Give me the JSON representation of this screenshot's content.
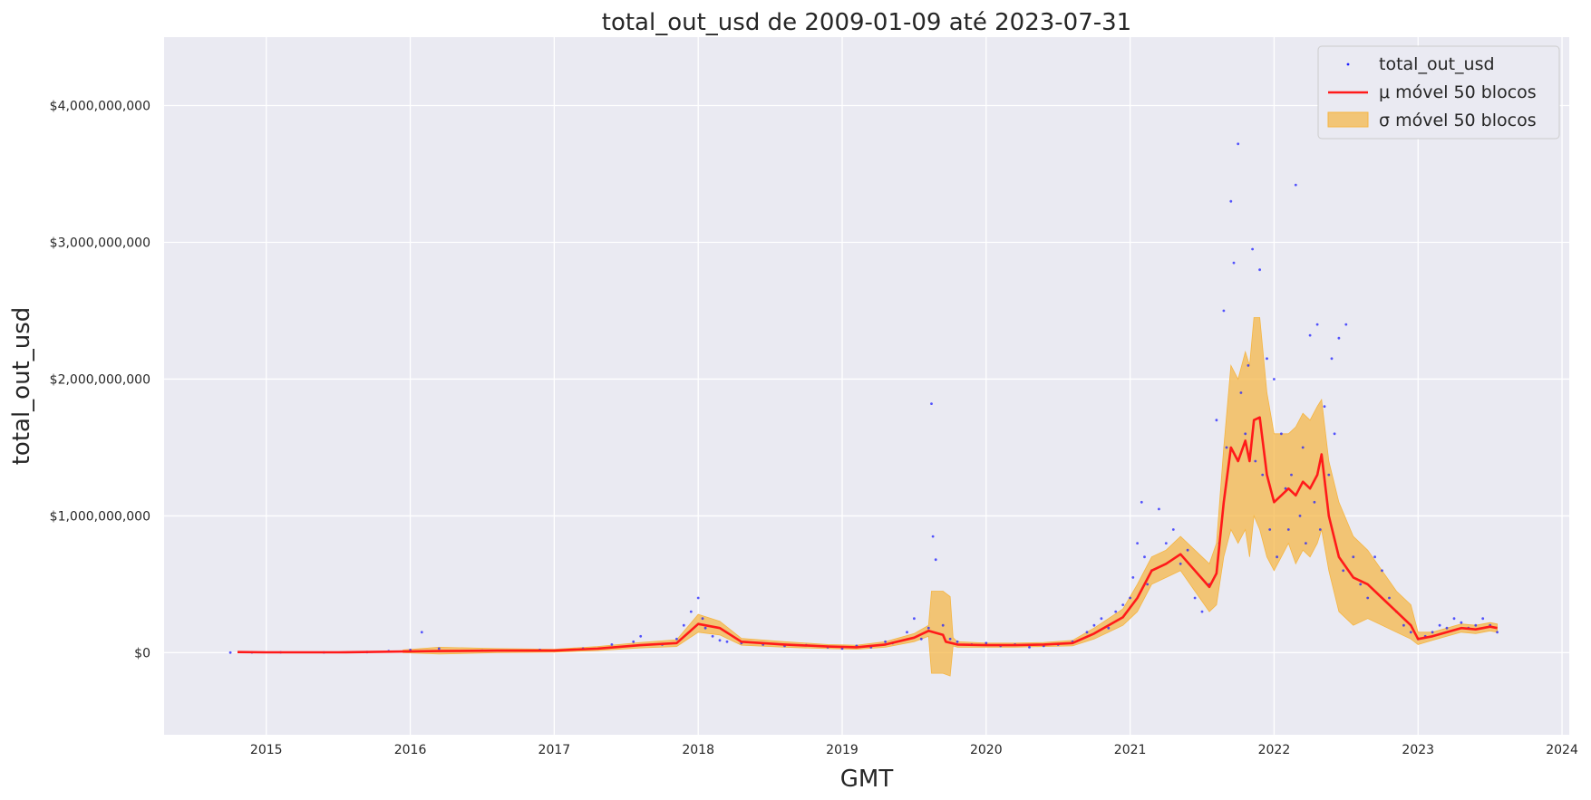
{
  "chart_data": {
    "type": "scatter",
    "title": "total_out_usd de 2009-01-09 até 2023-07-31",
    "xlabel": "GMT",
    "ylabel": "total_out_usd",
    "x_ticks": [
      "2015",
      "2016",
      "2017",
      "2018",
      "2019",
      "2020",
      "2021",
      "2022",
      "2023",
      "2024"
    ],
    "y_ticks": [
      "$0",
      "$1,000,000,000",
      "$2,000,000,000",
      "$3,000,000,000",
      "$4,000,000,000"
    ],
    "xlim": [
      2014.29,
      2024.05
    ],
    "ylim": [
      -600000000,
      4500000000
    ],
    "grid": true,
    "legend_position": "top-right",
    "colors": {
      "background": "#eaeaf2",
      "scatter": "#1f1fff",
      "mean": "#ff1a1a",
      "band": "#f5b542"
    },
    "series": [
      {
        "name": "total_out_usd",
        "kind": "scatter",
        "x": [
          2014.75,
          2014.9,
          2015.1,
          2015.4,
          2015.7,
          2015.85,
          2016.0,
          2016.08,
          2016.2,
          2016.5,
          2016.9,
          2017.2,
          2017.4,
          2017.55,
          2017.6,
          2017.75,
          2017.85,
          2017.9,
          2017.95,
          2018.0,
          2018.03,
          2018.05,
          2018.1,
          2018.15,
          2018.2,
          2018.3,
          2018.45,
          2018.6,
          2018.75,
          2018.9,
          2019.0,
          2019.1,
          2019.2,
          2019.3,
          2019.35,
          2019.45,
          2019.5,
          2019.55,
          2019.6,
          2019.62,
          2019.63,
          2019.65,
          2019.7,
          2019.75,
          2019.8,
          2019.9,
          2020.0,
          2020.1,
          2020.2,
          2020.3,
          2020.4,
          2020.5,
          2020.6,
          2020.7,
          2020.75,
          2020.8,
          2020.85,
          2020.9,
          2020.95,
          2021.0,
          2021.02,
          2021.05,
          2021.08,
          2021.1,
          2021.12,
          2021.15,
          2021.2,
          2021.25,
          2021.3,
          2021.35,
          2021.4,
          2021.45,
          2021.5,
          2021.55,
          2021.6,
          2021.62,
          2021.65,
          2021.67,
          2021.7,
          2021.72,
          2021.75,
          2021.77,
          2021.8,
          2021.82,
          2021.85,
          2021.87,
          2021.9,
          2021.92,
          2021.95,
          2021.97,
          2022.0,
          2022.02,
          2022.05,
          2022.08,
          2022.1,
          2022.12,
          2022.15,
          2022.18,
          2022.2,
          2022.22,
          2022.25,
          2022.28,
          2022.3,
          2022.32,
          2022.35,
          2022.38,
          2022.4,
          2022.42,
          2022.45,
          2022.48,
          2022.5,
          2022.55,
          2022.6,
          2022.65,
          2022.7,
          2022.75,
          2022.8,
          2022.85,
          2022.9,
          2022.95,
          2023.0,
          2023.05,
          2023.1,
          2023.15,
          2023.2,
          2023.25,
          2023.3,
          2023.35,
          2023.4,
          2023.45,
          2023.5,
          2023.55
        ],
        "y": [
          1000000,
          2000000,
          3000000,
          2000000,
          5000000,
          12000000,
          20000000,
          150000000,
          30000000,
          15000000,
          20000000,
          30000000,
          60000000,
          80000000,
          120000000,
          60000000,
          100000000,
          200000000,
          300000000,
          400000000,
          250000000,
          180000000,
          120000000,
          90000000,
          80000000,
          70000000,
          60000000,
          50000000,
          55000000,
          40000000,
          30000000,
          50000000,
          40000000,
          80000000,
          70000000,
          150000000,
          250000000,
          100000000,
          180000000,
          1820000000,
          850000000,
          680000000,
          200000000,
          100000000,
          80000000,
          60000000,
          70000000,
          50000000,
          60000000,
          40000000,
          50000000,
          60000000,
          80000000,
          150000000,
          200000000,
          250000000,
          180000000,
          300000000,
          350000000,
          400000000,
          550000000,
          800000000,
          1100000000,
          700000000,
          500000000,
          600000000,
          1050000000,
          800000000,
          900000000,
          650000000,
          750000000,
          400000000,
          300000000,
          500000000,
          1700000000,
          800000000,
          2500000000,
          1500000000,
          3300000000,
          2850000000,
          3720000000,
          1900000000,
          1600000000,
          2100000000,
          2950000000,
          1400000000,
          2800000000,
          1300000000,
          2150000000,
          900000000,
          2000000000,
          700000000,
          1600000000,
          1200000000,
          900000000,
          1300000000,
          3420000000,
          1000000000,
          1500000000,
          800000000,
          2320000000,
          1100000000,
          2400000000,
          900000000,
          1800000000,
          1300000000,
          2150000000,
          1600000000,
          2300000000,
          600000000,
          2400000000,
          700000000,
          500000000,
          400000000,
          700000000,
          600000000,
          400000000,
          300000000,
          200000000,
          150000000,
          100000000,
          120000000,
          150000000,
          200000000,
          180000000,
          250000000,
          220000000,
          180000000,
          200000000,
          250000000,
          200000000,
          150000000
        ]
      },
      {
        "name": "μ móvel 50 blocos",
        "kind": "line",
        "x": [
          2014.8,
          2015.0,
          2015.5,
          2015.9,
          2016.2,
          2016.6,
          2017.0,
          2017.3,
          2017.6,
          2017.85,
          2018.0,
          2018.15,
          2018.3,
          2018.6,
          2018.9,
          2019.1,
          2019.3,
          2019.5,
          2019.6,
          2019.7,
          2019.72,
          2019.8,
          2020.0,
          2020.2,
          2020.4,
          2020.6,
          2020.75,
          2020.85,
          2020.95,
          2021.05,
          2021.15,
          2021.25,
          2021.35,
          2021.45,
          2021.55,
          2021.6,
          2021.65,
          2021.7,
          2021.75,
          2021.8,
          2021.83,
          2021.86,
          2021.9,
          2021.95,
          2022.0,
          2022.05,
          2022.1,
          2022.15,
          2022.2,
          2022.25,
          2022.3,
          2022.33,
          2022.38,
          2022.45,
          2022.55,
          2022.65,
          2022.75,
          2022.85,
          2022.95,
          2023.0,
          2023.1,
          2023.2,
          2023.3,
          2023.4,
          2023.5,
          2023.55
        ],
        "y": [
          5000000,
          3000000,
          3000000,
          8000000,
          12000000,
          15000000,
          15000000,
          30000000,
          55000000,
          70000000,
          210000000,
          180000000,
          80000000,
          60000000,
          45000000,
          40000000,
          60000000,
          110000000,
          160000000,
          130000000,
          80000000,
          60000000,
          55000000,
          55000000,
          60000000,
          70000000,
          140000000,
          200000000,
          260000000,
          400000000,
          600000000,
          650000000,
          720000000,
          600000000,
          480000000,
          580000000,
          1100000000,
          1500000000,
          1400000000,
          1550000000,
          1400000000,
          1700000000,
          1720000000,
          1300000000,
          1100000000,
          1150000000,
          1200000000,
          1150000000,
          1250000000,
          1200000000,
          1300000000,
          1450000000,
          1000000000,
          700000000,
          550000000,
          500000000,
          400000000,
          300000000,
          200000000,
          100000000,
          120000000,
          150000000,
          180000000,
          170000000,
          190000000,
          180000000
        ]
      },
      {
        "name": "σ móvel 50 blocos",
        "kind": "band",
        "x": [
          2015.95,
          2016.2,
          2016.6,
          2017.0,
          2017.3,
          2017.6,
          2017.85,
          2018.0,
          2018.15,
          2018.3,
          2018.6,
          2018.9,
          2019.1,
          2019.3,
          2019.5,
          2019.6,
          2019.62,
          2019.7,
          2019.75,
          2019.77,
          2019.8,
          2020.0,
          2020.2,
          2020.4,
          2020.6,
          2020.75,
          2020.85,
          2020.95,
          2021.05,
          2021.15,
          2021.25,
          2021.35,
          2021.45,
          2021.55,
          2021.6,
          2021.65,
          2021.7,
          2021.75,
          2021.8,
          2021.83,
          2021.86,
          2021.9,
          2021.95,
          2022.0,
          2022.05,
          2022.1,
          2022.15,
          2022.2,
          2022.25,
          2022.3,
          2022.33,
          2022.38,
          2022.45,
          2022.55,
          2022.65,
          2022.75,
          2022.85,
          2022.95,
          2023.0,
          2023.1,
          2023.2,
          2023.3,
          2023.4,
          2023.5,
          2023.55
        ],
        "lower": [
          0,
          -10000000,
          0,
          5000000,
          15000000,
          35000000,
          45000000,
          150000000,
          130000000,
          55000000,
          40000000,
          30000000,
          25000000,
          40000000,
          80000000,
          120000000,
          -150000000,
          -150000000,
          -170000000,
          50000000,
          40000000,
          40000000,
          40000000,
          45000000,
          50000000,
          100000000,
          150000000,
          200000000,
          300000000,
          500000000,
          550000000,
          600000000,
          450000000,
          300000000,
          350000000,
          700000000,
          900000000,
          800000000,
          900000000,
          700000000,
          1000000000,
          900000000,
          700000000,
          600000000,
          700000000,
          800000000,
          650000000,
          750000000,
          700000000,
          800000000,
          900000000,
          600000000,
          300000000,
          200000000,
          250000000,
          200000000,
          150000000,
          100000000,
          60000000,
          90000000,
          120000000,
          150000000,
          140000000,
          160000000,
          150000000
        ],
        "upper": [
          20000000,
          40000000,
          30000000,
          25000000,
          45000000,
          75000000,
          95000000,
          280000000,
          230000000,
          105000000,
          80000000,
          60000000,
          55000000,
          80000000,
          140000000,
          200000000,
          450000000,
          450000000,
          410000000,
          110000000,
          80000000,
          70000000,
          70000000,
          75000000,
          90000000,
          180000000,
          250000000,
          320000000,
          500000000,
          700000000,
          750000000,
          850000000,
          750000000,
          650000000,
          800000000,
          1500000000,
          2100000000,
          2000000000,
          2200000000,
          2100000000,
          2450000000,
          2450000000,
          1900000000,
          1600000000,
          1600000000,
          1600000000,
          1650000000,
          1750000000,
          1700000000,
          1800000000,
          1850000000,
          1400000000,
          1100000000,
          850000000,
          750000000,
          600000000,
          450000000,
          350000000,
          150000000,
          150000000,
          180000000,
          210000000,
          200000000,
          220000000,
          210000000
        ]
      }
    ]
  }
}
